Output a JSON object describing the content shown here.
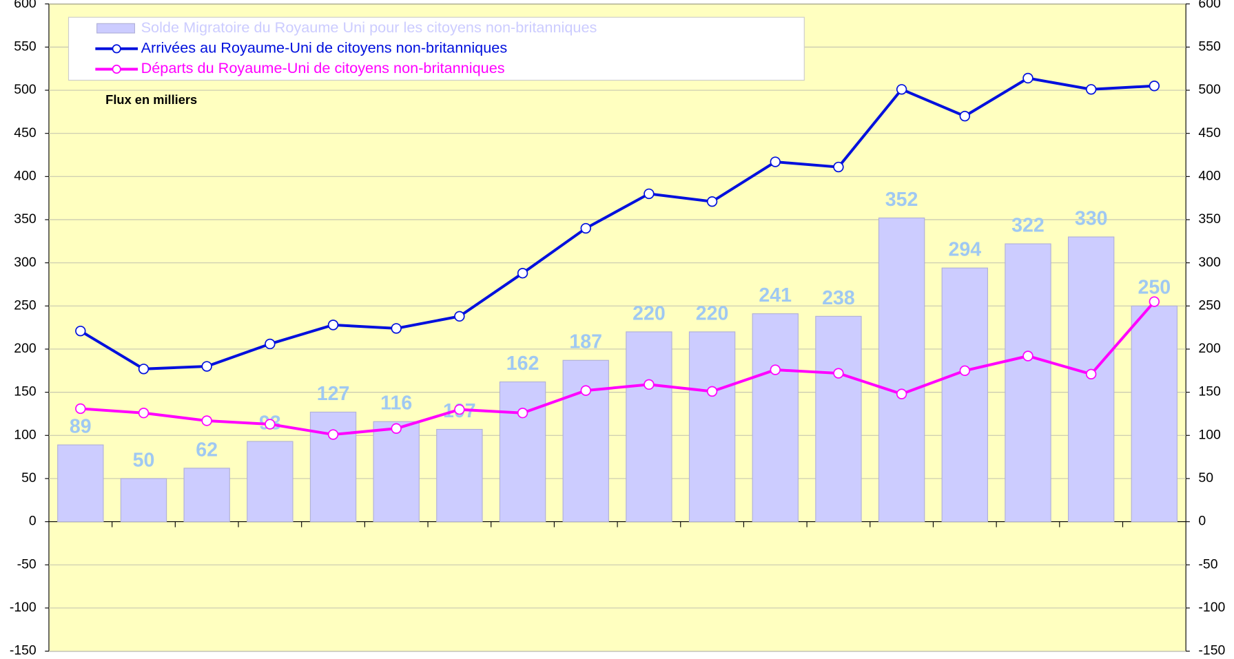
{
  "chart_data": {
    "type": "bar",
    "categories": [
      null,
      null,
      null,
      null,
      null,
      null,
      null,
      null,
      null,
      null,
      null,
      null,
      null,
      null,
      null,
      null,
      null,
      null
    ],
    "series": [
      {
        "name": "Solde Migratoire du Royaume Uni pour les citoyens non-britanniques",
        "type": "bar",
        "color": "#ccccff",
        "label_color": "#9fc8f2",
        "values": [
          89,
          50,
          62,
          93,
          127,
          116,
          107,
          162,
          187,
          220,
          220,
          241,
          238,
          352,
          294,
          322,
          330,
          250
        ]
      },
      {
        "name": "Arrivées au Royaume-Uni de citoyens non-britanniques",
        "type": "line",
        "color": "#0010dd",
        "values": [
          221,
          177,
          180,
          206,
          228,
          224,
          238,
          288,
          340,
          380,
          371,
          417,
          411,
          501,
          470,
          514,
          501,
          505
        ]
      },
      {
        "name": "Départs du Royaume-Uni de citoyens non-britanniques",
        "type": "line",
        "color": "#ff00ff",
        "values": [
          131,
          126,
          117,
          113,
          101,
          108,
          130,
          126,
          152,
          159,
          151,
          176,
          172,
          148,
          175,
          192,
          171,
          255
        ]
      }
    ],
    "annotation": "Flux en milliers",
    "ylim": [
      -150,
      600
    ],
    "yticks": [
      -150,
      -100,
      -50,
      0,
      50,
      100,
      150,
      200,
      250,
      300,
      350,
      400,
      450,
      500,
      550,
      600
    ],
    "y2lim": [
      -150,
      600
    ],
    "y2ticks": [
      -150,
      -100,
      -50,
      0,
      50,
      100,
      150,
      200,
      250,
      300,
      350,
      400,
      450,
      500,
      550,
      600
    ],
    "grid": true,
    "legend": "upper left",
    "background": "#ffffc0"
  }
}
